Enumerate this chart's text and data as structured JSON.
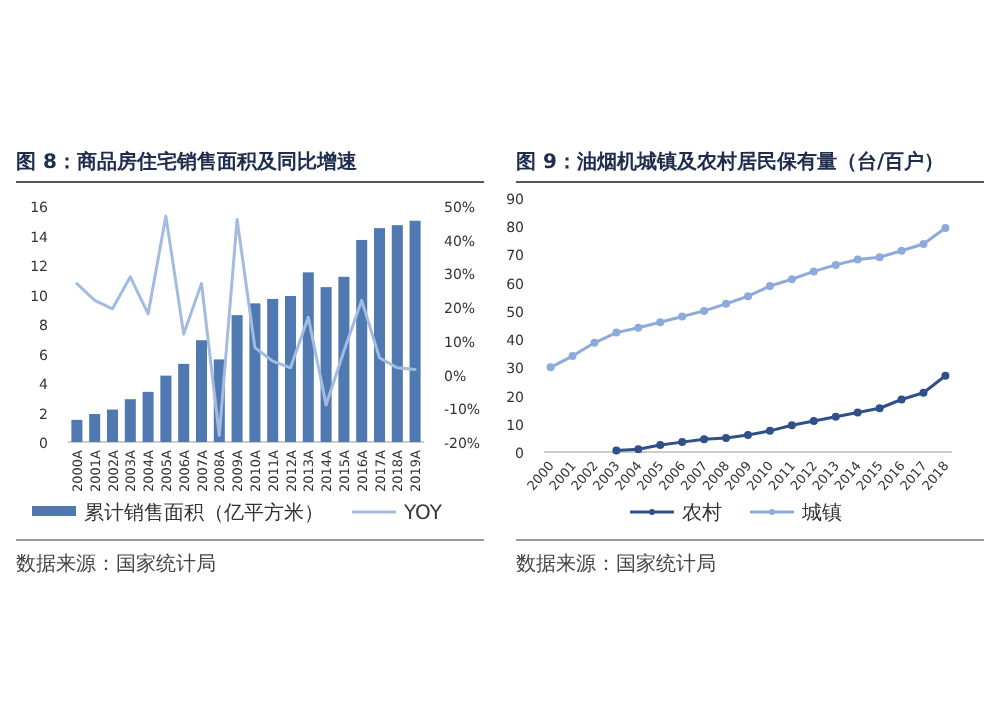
{
  "chart_data": [
    {
      "type": "bar",
      "title": "图 8：商品房住宅销售面积及同比增速",
      "categories": [
        "2000A",
        "2001A",
        "2002A",
        "2003A",
        "2004A",
        "2005A",
        "2006A",
        "2007A",
        "2008A",
        "2009A",
        "2010A",
        "2011A",
        "2012A",
        "2013A",
        "2014A",
        "2015A",
        "2016A",
        "2017A",
        "2018A",
        "2019A"
      ],
      "series": [
        {
          "name": "累计销售面积（亿平方米）",
          "type": "bar",
          "color": "#4f79b0",
          "values": [
            1.5,
            1.9,
            2.2,
            2.9,
            3.4,
            4.5,
            5.3,
            6.9,
            5.6,
            8.6,
            9.4,
            9.7,
            9.9,
            11.5,
            10.5,
            11.2,
            13.7,
            14.5,
            14.7,
            15.0
          ]
        },
        {
          "name": "YOY",
          "type": "line",
          "axis": "y2",
          "color": "#a3bbdf",
          "values": [
            27,
            22,
            19.5,
            29,
            18,
            47,
            12,
            27,
            -18,
            46,
            8,
            4,
            2,
            17,
            -9,
            7,
            22,
            5,
            2,
            1.5
          ]
        }
      ],
      "ylim": [
        0,
        16
      ],
      "yticks": [
        0,
        2,
        4,
        6,
        8,
        10,
        12,
        14,
        16
      ],
      "y2lim": [
        -20,
        50
      ],
      "y2ticks": [
        {
          "value": -20,
          "label": "-20%"
        },
        {
          "value": -10,
          "label": "-10%"
        },
        {
          "value": 0,
          "label": "0%"
        },
        {
          "value": 10,
          "label": "10%"
        },
        {
          "value": 20,
          "label": "20%"
        },
        {
          "value": 30,
          "label": "30%"
        },
        {
          "value": 40,
          "label": "40%"
        },
        {
          "value": 50,
          "label": "50%"
        }
      ],
      "legend": "bottom",
      "annotations": [
        "数据来源：国家统计局"
      ]
    },
    {
      "type": "line",
      "title": "图 9：油烟机城镇及农村居民保有量（台/百户）",
      "categories": [
        "2000",
        "2001",
        "2002",
        "2003",
        "2004",
        "2005",
        "2006",
        "2007",
        "2008",
        "2009",
        "2010",
        "2011",
        "2012",
        "2013",
        "2014",
        "2015",
        "2016",
        "2017",
        "2018"
      ],
      "series": [
        {
          "name": "农村",
          "color": "#2f5088",
          "values": [
            null,
            null,
            null,
            0.5,
            1,
            2.5,
            3.5,
            4.5,
            5,
            6,
            7.5,
            9.5,
            11,
            12.5,
            14,
            15.5,
            18.6,
            21,
            27
          ]
        },
        {
          "name": "城镇",
          "color": "#8eaadb",
          "values": [
            30,
            34,
            38.7,
            42.3,
            44,
            46,
            48,
            50,
            52.5,
            55.2,
            58.8,
            61.2,
            64,
            66.3,
            68.2,
            69,
            71.3,
            73.7,
            79.4
          ]
        }
      ],
      "ylim": [
        0,
        90
      ],
      "yticks": [
        0,
        10,
        20,
        30,
        40,
        50,
        60,
        70,
        80,
        90
      ],
      "legend": "bottom",
      "marker": "circle",
      "annotations": [
        "数据来源：国家统计局"
      ]
    }
  ]
}
